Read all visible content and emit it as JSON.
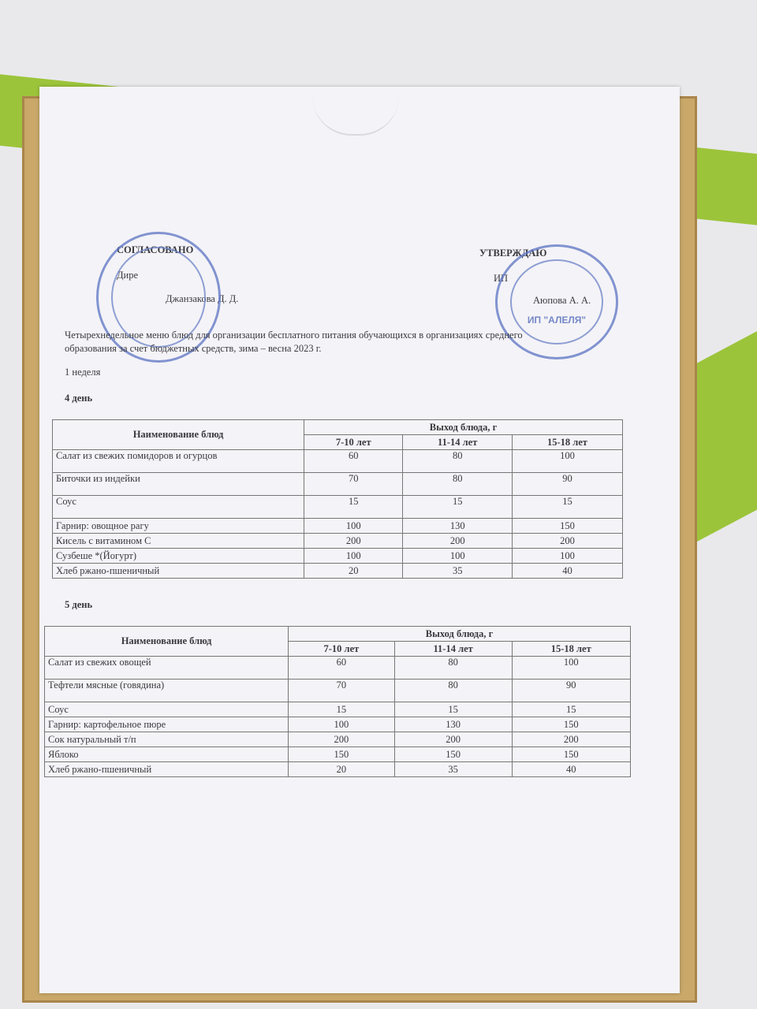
{
  "header": {
    "agreed_label": "СОГЛАСОВАНО",
    "agreed_position": "Дире",
    "agreed_name": "Джанзакова Д. Д.",
    "approved_label": "УТВЕРЖДАЮ",
    "approved_position": "ИП",
    "approved_name": "Аюпова А. А.",
    "stamp_right_text": "ИП \"АЛЕЛЯ\""
  },
  "title": "Четырехнедельное меню блюд для организации бесплатного питания обучающихся в организациях среднего",
  "title_line2": "образования за счет бюджетных средств, зима – весна 2023 г.",
  "week": "1 неделя",
  "days": [
    {
      "label": "4 день",
      "col_name": "Наименование блюд",
      "col_yield": "Выход блюда, г",
      "ages": [
        "7-10 лет",
        "11-14 лет",
        "15-18 лет"
      ],
      "rows": [
        {
          "name": "Салат из свежих помидоров и огурцов",
          "v": [
            "60",
            "80",
            "100"
          ]
        },
        {
          "name": "Биточки из индейки",
          "v": [
            "70",
            "80",
            "90"
          ]
        },
        {
          "name": "Соус",
          "v": [
            "15",
            "15",
            "15"
          ]
        },
        {
          "name": "Гарнир: овощное рагу",
          "v": [
            "100",
            "130",
            "150"
          ]
        },
        {
          "name": "Кисель с витамином С",
          "v": [
            "200",
            "200",
            "200"
          ]
        },
        {
          "name": "Сузбеше *(Йогурт)",
          "v": [
            "100",
            "100",
            "100"
          ]
        },
        {
          "name": "Хлеб ржано-пшеничный",
          "v": [
            "20",
            "35",
            "40"
          ]
        }
      ]
    },
    {
      "label": "5 день",
      "col_name": "Наименование блюд",
      "col_yield": "Выход блюда, г",
      "ages": [
        "7-10 лет",
        "11-14 лет",
        "15-18 лет"
      ],
      "rows": [
        {
          "name": "Салат из свежих овощей",
          "v": [
            "60",
            "80",
            "100"
          ]
        },
        {
          "name": "Тефтели мясные (говядина)",
          "v": [
            "70",
            "80",
            "90"
          ]
        },
        {
          "name": "Соус",
          "v": [
            "15",
            "15",
            "15"
          ]
        },
        {
          "name": "Гарнир:  картофельное пюре",
          "v": [
            "100",
            "130",
            "150"
          ]
        },
        {
          "name": "Сок натуральный т/п",
          "v": [
            "200",
            "200",
            "200"
          ]
        },
        {
          "name": "Яблоко",
          "v": [
            "150",
            "150",
            "150"
          ]
        },
        {
          "name": "Хлеб ржано-пшеничный",
          "v": [
            "20",
            "35",
            "40"
          ]
        }
      ]
    }
  ]
}
